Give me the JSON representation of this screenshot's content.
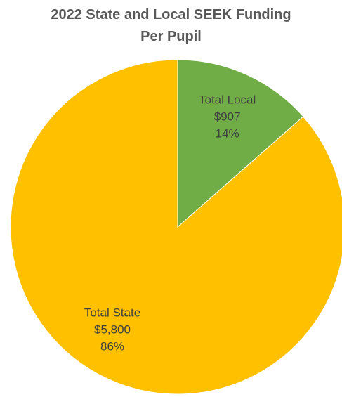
{
  "chart_data": {
    "type": "pie",
    "title_lines": [
      "2022 State and Local SEEK Funding",
      "Per Pupil"
    ],
    "slices": [
      {
        "name": "Total Local",
        "value": 907,
        "value_label": "$907",
        "percent_label": "14%",
        "color": "#70AD47",
        "label_color": "#404040"
      },
      {
        "name": "Total State",
        "value": 5800,
        "value_label": "$5,800",
        "percent_label": "86%",
        "color": "#FFC000",
        "label_color": "#404040"
      }
    ],
    "start_angle_deg": 0,
    "direction": "clockwise",
    "legend": "none"
  }
}
